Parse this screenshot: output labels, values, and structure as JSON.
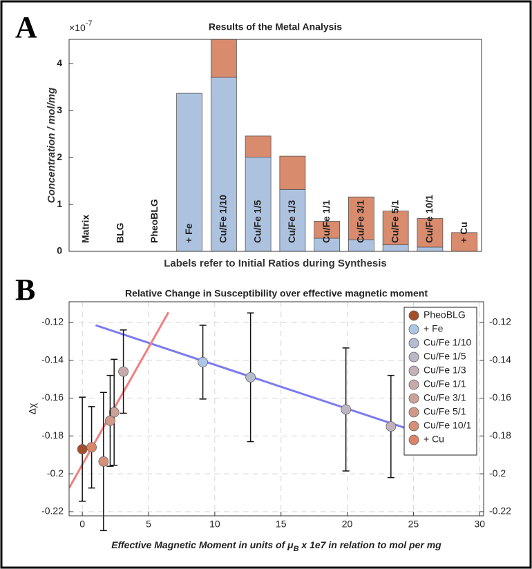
{
  "panel_labels": [
    "A",
    "B"
  ],
  "chart_data": [
    {
      "type": "bar",
      "stacked": true,
      "title": "Results of the Metal Analysis",
      "ylabel": "Concentration / mol/mg",
      "xlabel": "Labels refer to Initial Ratios during Synthesis",
      "y_scale_base": "×10",
      "y_scale_exponent": "-7",
      "categories": [
        "Matrix",
        "BLG",
        "PheoBLG",
        "+ Fe",
        "Cu/Fe 1/10",
        "Cu/Fe 1/5",
        "Cu/Fe 1/3",
        "Cu/Fe 1/1",
        "Cu/Fe 3/1",
        "Cu/Fe 5/1",
        "Cu/Fe 10/1",
        "+ Cu"
      ],
      "series": [
        {
          "color": "#adc2df",
          "values": [
            0,
            0,
            0,
            3.37,
            3.71,
            2.01,
            1.32,
            0.28,
            0.25,
            0.14,
            0.09,
            0
          ]
        },
        {
          "color": "#d98b6e",
          "values": [
            0,
            0,
            0,
            0,
            0.81,
            0.45,
            0.71,
            0.36,
            0.91,
            0.72,
            0.61,
            0.4
          ]
        }
      ],
      "ylim": [
        0,
        4.52
      ],
      "yticks": [
        0,
        1,
        2,
        3,
        4
      ],
      "grid": false
    },
    {
      "type": "scatter",
      "title": "Relative Change in Susceptibility over effective magnetic moment",
      "ylabel": "Δχ",
      "xlabel": [
        "Effective Magnetic Moment in units of μ",
        "B",
        " x 1e7 in relation to mol per mg"
      ],
      "series": [
        {
          "name": "PheoBLG",
          "color": "#a44f2c",
          "x": [
            0
          ],
          "values": [
            -0.187
          ],
          "errors": [
            0.0275
          ]
        },
        {
          "name": "+ Fe",
          "color": "#aec6e6",
          "x": [
            9.1
          ],
          "values": [
            -0.141
          ],
          "errors": [
            0.0195
          ]
        },
        {
          "name": "Cu/Fe 1/10",
          "color": "#b5bccf",
          "x": [
            12.7
          ],
          "values": [
            -0.149
          ],
          "errors": [
            0.034
          ]
        },
        {
          "name": "Cu/Fe 1/5",
          "color": "#bcb6c6",
          "x": [
            19.9
          ],
          "values": [
            -0.166
          ],
          "errors": [
            0.0325
          ]
        },
        {
          "name": "Cu/Fe 1/3",
          "color": "#c2b1bb",
          "x": [
            23.3
          ],
          "values": [
            -0.175
          ],
          "errors": [
            0.027
          ]
        },
        {
          "name": "Cu/Fe 1/1",
          "color": "#c7aaaa",
          "x": [
            3.1
          ],
          "values": [
            -0.146
          ],
          "errors": [
            0.022
          ]
        },
        {
          "name": "Cu/Fe 3/1",
          "color": "#cba29a",
          "x": [
            2.4
          ],
          "values": [
            -0.1675
          ],
          "errors": [
            0.028
          ]
        },
        {
          "name": "Cu/Fe 5/1",
          "color": "#cf9a89",
          "x": [
            2.1
          ],
          "values": [
            -0.172
          ],
          "errors": [
            0.024
          ]
        },
        {
          "name": "Cu/Fe 10/1",
          "color": "#d49079",
          "x": [
            1.6
          ],
          "values": [
            -0.1935
          ],
          "errors": [
            0.0365
          ]
        },
        {
          "name": "+ Cu",
          "color": "#dc8467",
          "x": [
            0.7
          ],
          "values": [
            -0.186
          ],
          "errors": [
            0.0215
          ]
        }
      ],
      "lines": [
        {
          "color": "#7b7bf0",
          "x": [
            1,
            24.9
          ],
          "values": [
            -0.1215,
            -0.177
          ]
        },
        {
          "color": "#f07f7f",
          "x": [
            -1,
            6.5
          ],
          "values": [
            -0.2075,
            -0.1147
          ]
        }
      ],
      "xlim": [
        -1,
        30.3
      ],
      "xticks": [
        0,
        5,
        10,
        15,
        20,
        25,
        30
      ],
      "ylim": [
        -0.2222,
        -0.1091
      ],
      "yticks": [
        -0.22,
        -0.2,
        -0.18,
        -0.16,
        -0.14,
        -0.12
      ],
      "y2lim": [
        -0.2222,
        -0.1091
      ],
      "y2ticks": [
        -0.22,
        -0.2,
        -0.18,
        -0.16,
        -0.14,
        -0.12
      ],
      "grid": true,
      "legend": "upper right"
    }
  ]
}
